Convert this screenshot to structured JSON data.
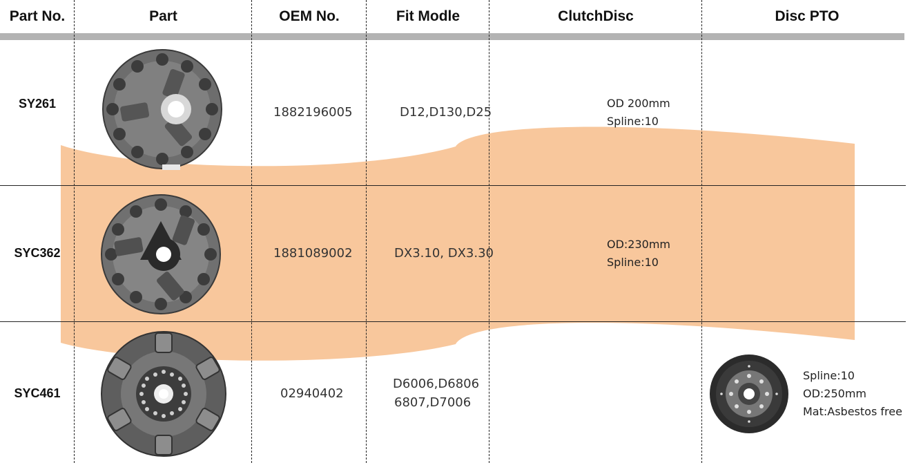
{
  "headers": {
    "part_no": "Part No.",
    "part": "Part",
    "oem_no": "OEM No.",
    "fit_model": "Fit Modle",
    "clutch_disc": "ClutchDisc",
    "disc_pto": "Disc PTO"
  },
  "rows": [
    {
      "part_no": "SY261",
      "oem_no": "1882196005",
      "fit_model": [
        "D12,D130,D25"
      ],
      "clutch_disc": [
        "OD   200mm",
        "Spline:10"
      ],
      "disc_pto": []
    },
    {
      "part_no": "SYC362",
      "oem_no": "1881089002",
      "fit_model": [
        "DX3.10, DX3.30"
      ],
      "clutch_disc": [
        "OD:230mm",
        "Spline:10"
      ],
      "disc_pto": []
    },
    {
      "part_no": "SYC461",
      "oem_no": "02940402",
      "fit_model": [
        "D6006,D6806",
        "6807,D7006"
      ],
      "clutch_disc": [],
      "disc_pto": [
        "Spline:10",
        "OD:250mm",
        "Mat:Asbestos free"
      ]
    }
  ],
  "colors": {
    "watermark": "#f4a460",
    "header_bar": "#b3b3b3"
  },
  "icons": [
    "clutch-pressure-plate-icon",
    "clutch-disc-icon"
  ]
}
